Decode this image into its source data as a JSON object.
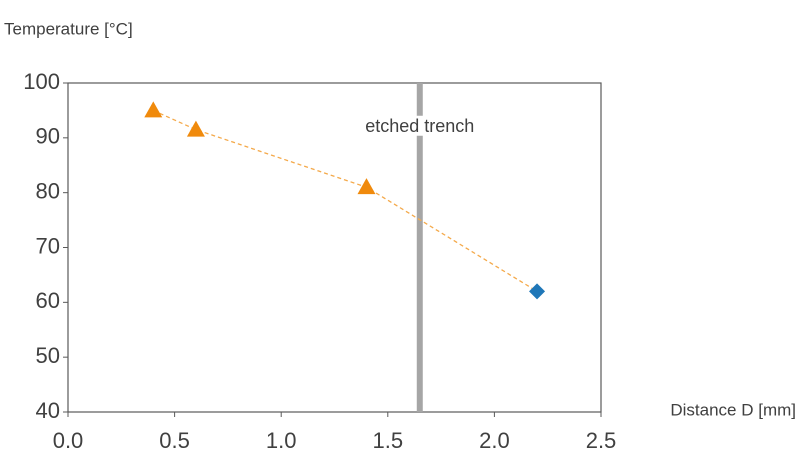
{
  "chart_data": {
    "type": "scatter",
    "y_label": "Temperature [°C]",
    "x_label": "Distance D [mm]",
    "series": [
      {
        "color": "#f08a0c",
        "marker": "triangle",
        "x": [
          0.4,
          0.6,
          1.4
        ],
        "values": [
          95,
          91.5,
          81
        ]
      },
      {
        "color": "#1f77b8",
        "marker": "diamond",
        "x": [
          2.2
        ],
        "values": [
          62
        ]
      }
    ],
    "connect_line": {
      "color": "#f4a94a",
      "dashed": true
    },
    "vline": {
      "x": 1.65,
      "label": "etched trench",
      "color": "#a6a6a6"
    },
    "xlim": [
      0,
      2.5
    ],
    "ylim": [
      40,
      100
    ],
    "xticks": [
      {
        "value": 0,
        "label": "0.0"
      },
      0.5,
      {
        "value": 1,
        "label": "1.0"
      },
      1.5,
      {
        "value": 2,
        "label": "2.0"
      },
      2.5
    ],
    "yticks": [
      40,
      50,
      60,
      70,
      80,
      90,
      100
    ],
    "grid": false
  }
}
